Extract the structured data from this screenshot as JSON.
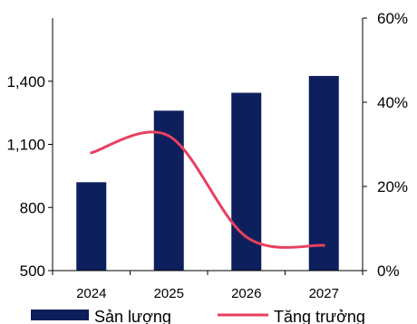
{
  "chart_data": {
    "type": "bar+line",
    "categories": [
      "2024",
      "2025",
      "2026",
      "2027"
    ],
    "series": [
      {
        "name": "Sản lượng",
        "type": "bar",
        "axis": "left",
        "color": "#0d1f5c",
        "values": [
          920,
          1260,
          1345,
          1425
        ]
      },
      {
        "name": "Tăng trưởng",
        "type": "line",
        "axis": "right",
        "color": "#e8405f",
        "smooth": true,
        "values": [
          0.28,
          0.32,
          0.08,
          0.06
        ]
      }
    ],
    "y_left": {
      "range": [
        500,
        1700
      ],
      "ticks": [
        500,
        800,
        1100,
        1400
      ],
      "tick_labels": [
        "500",
        "800",
        "1,100",
        "1,400"
      ]
    },
    "y_right": {
      "range": [
        0,
        0.6
      ],
      "ticks": [
        0,
        0.2,
        0.4,
        0.6
      ],
      "tick_labels": [
        "0%",
        "20%",
        "40%",
        "60%"
      ]
    },
    "grid": false,
    "legend_position": "bottom"
  }
}
